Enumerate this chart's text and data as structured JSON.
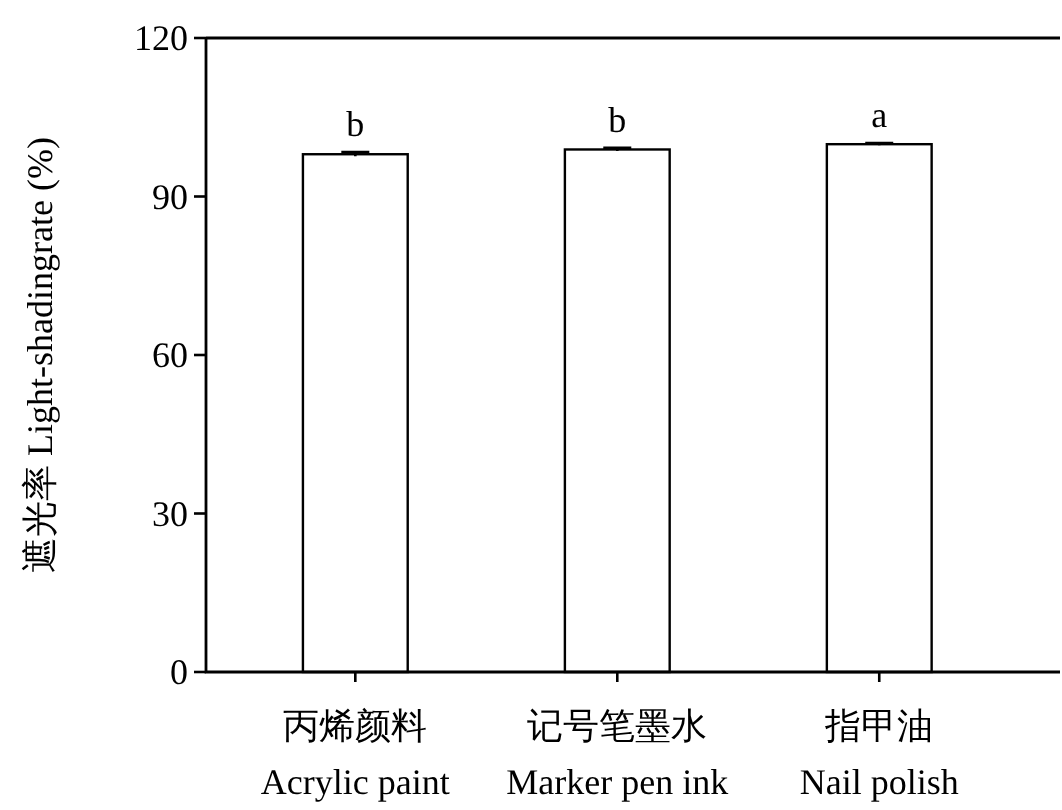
{
  "chart_data": {
    "type": "bar",
    "ylabel": "遮光率 Light-shadingrate (%)",
    "categories": [
      "丙烯颜料\nAcrylic paint",
      "记号笔墨水\nMarker pen ink",
      "指甲油\nNail polish"
    ],
    "values": [
      98.0,
      98.9,
      99.9
    ],
    "errors": [
      0.4,
      0.3,
      0.2
    ],
    "color": "#ffffff",
    "ylim": [
      0,
      120
    ],
    "yticks": [
      0,
      30,
      60,
      90,
      120
    ],
    "annotations": [
      {
        "text": "b",
        "x": "丙烯颜料\nAcrylic paint",
        "y": 98.4
      },
      {
        "text": "b",
        "x": "记号笔墨水\nMarker pen ink",
        "y": 99.2
      },
      {
        "text": "a",
        "x": "指甲油\nNail polish",
        "y": 100.1
      }
    ]
  }
}
